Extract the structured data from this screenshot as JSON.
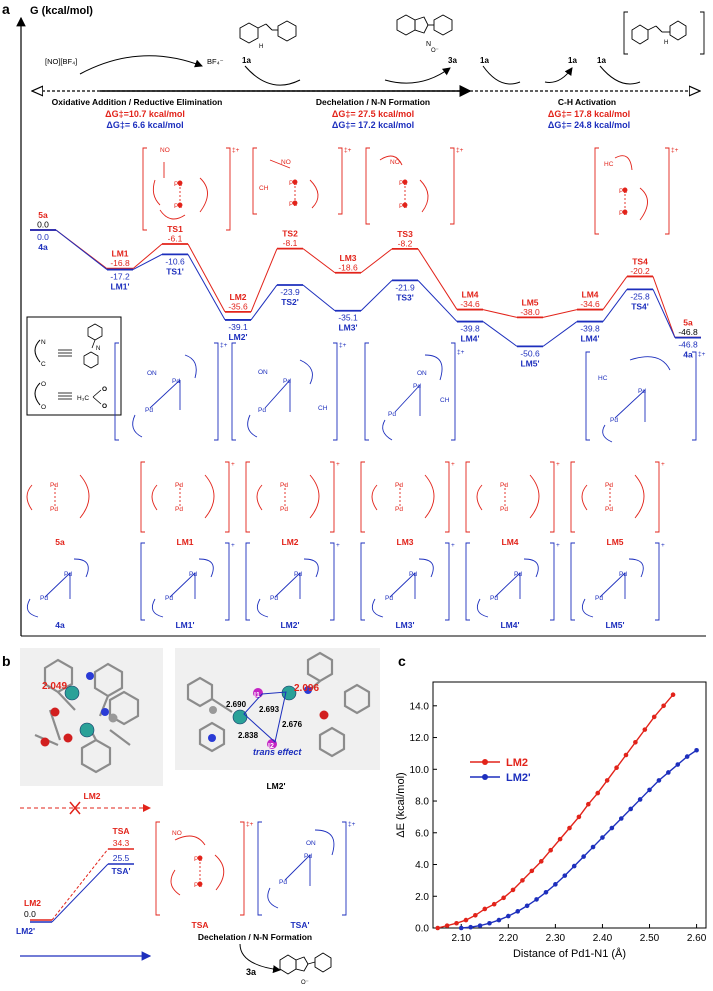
{
  "panel_a": {
    "label": "a",
    "y_axis_label": "G (kcal/mol)",
    "reagents": {
      "no_bf4": "[NO][BF₄]",
      "bf4": "BF₄⁻",
      "r1a_1": "1a",
      "r3a": "3a",
      "r1a_2": "1a",
      "r1a_3": "1a",
      "r1a_4": "1a"
    },
    "stages": [
      {
        "name": "Oxidative Addition / Reductive Elimination",
        "dg_red": "ΔG‡=10.7 kcal/mol",
        "dg_blue": "ΔG‡= 6.6 kcal/mol"
      },
      {
        "name": "Dechelation / N-N Formation",
        "dg_red": "ΔG‡= 27.5 kcal/mol",
        "dg_blue": "ΔG‡= 17.2 kcal/mol"
      },
      {
        "name": "C-H Activation",
        "dg_red": "ΔG‡= 17.8 kcal/mol",
        "dg_blue": "ΔG‡= 24.8 kcal/mol"
      }
    ],
    "red_states": [
      {
        "label": "5a",
        "value": "0.0"
      },
      {
        "label": "LM1",
        "value": "-16.8"
      },
      {
        "label": "TS1",
        "value": "-6.1"
      },
      {
        "label": "LM2",
        "value": "-35.6"
      },
      {
        "label": "TS2",
        "value": "-8.1"
      },
      {
        "label": "LM3",
        "value": "-18.6"
      },
      {
        "label": "TS3",
        "value": "-8.2"
      },
      {
        "label": "LM4",
        "value": "-34.6"
      },
      {
        "label": "LM5",
        "value": "-38.0"
      },
      {
        "label": "LM4",
        "value": "-34.6"
      },
      {
        "label": "TS4",
        "value": "-20.2"
      },
      {
        "label": "5a",
        "value": "-46.8"
      }
    ],
    "blue_states": [
      {
        "label": "4a",
        "value": "0.0"
      },
      {
        "label": "LM1'",
        "value": "-17.2"
      },
      {
        "label": "TS1'",
        "value": "-10.6"
      },
      {
        "label": "LM2'",
        "value": "-39.1"
      },
      {
        "label": "TS2'",
        "value": "-23.9"
      },
      {
        "label": "LM3'",
        "value": "-35.1"
      },
      {
        "label": "TS3'",
        "value": "-21.9"
      },
      {
        "label": "LM4'",
        "value": "-39.8"
      },
      {
        "label": "LM5'",
        "value": "-50.6"
      },
      {
        "label": "LM4'",
        "value": "-39.8"
      },
      {
        "label": "TS4'",
        "value": "-25.8"
      },
      {
        "label": "4a",
        "value": "-46.8"
      }
    ],
    "legend": {
      "ligand_cn": "C ≡ N",
      "acetate": "O ≡ H₃C"
    },
    "red_struct_labels": [
      "5a",
      "LM1",
      "LM2",
      "LM3",
      "LM4",
      "LM5"
    ],
    "blue_struct_labels": [
      "4a",
      "LM1'",
      "LM2'",
      "LM3'",
      "LM4'",
      "LM5'"
    ],
    "ts_labels_red": [
      "TS1",
      "TS2",
      "TS3",
      "TS4"
    ],
    "ts_labels_blue": [
      "TS1'",
      "TS2'",
      "TS3'",
      "TS4'"
    ]
  },
  "panel_b": {
    "label": "b",
    "lm2_caption": "LM2",
    "lm2p_caption": "LM2'",
    "d_2049": "2.049",
    "d_2096": "2.096",
    "d_2690": "2.690",
    "d_2693": "2.693",
    "d_2676": "2.676",
    "d_2838": "2.838",
    "atom_i1": "I1",
    "atom_i2": "I2",
    "trans_effect": "trans effect",
    "tsa_label": "TSA",
    "tsa_value": "34.3",
    "tsap_label": "TSA'",
    "tsap_value": "25.5",
    "lm2_level": "LM2",
    "lm2_level_value": "0.0",
    "lm2p_level": "LM2'",
    "struct_tsa": "TSA",
    "struct_tsap": "TSA'",
    "step_name": "Dechelation / N-N Formation",
    "product": "3a"
  },
  "panel_c": {
    "label": "c"
  },
  "chart_data": {
    "type": "line",
    "title": "",
    "xlabel": "Distance of Pd1-N1 (Å)",
    "ylabel": "ΔE (kcal/mol)",
    "xlim": [
      2.04,
      2.62
    ],
    "ylim": [
      0,
      15.5
    ],
    "xticks": [
      "2.10",
      "2.20",
      "2.30",
      "2.40",
      "2.50",
      "2.60"
    ],
    "yticks": [
      "0.0",
      "2.0",
      "4.0",
      "6.0",
      "8.0",
      "10.0",
      "12.0",
      "14.0"
    ],
    "legend_position": "upper-left",
    "series": [
      {
        "name": "LM2",
        "color": "#e2231a",
        "x": [
          2.05,
          2.07,
          2.09,
          2.11,
          2.13,
          2.15,
          2.17,
          2.19,
          2.21,
          2.23,
          2.25,
          2.27,
          2.29,
          2.31,
          2.33,
          2.35,
          2.37,
          2.39,
          2.41,
          2.43,
          2.45,
          2.47,
          2.49,
          2.51,
          2.53,
          2.55
        ],
        "y": [
          0.0,
          0.15,
          0.3,
          0.5,
          0.8,
          1.2,
          1.5,
          1.9,
          2.4,
          3.0,
          3.6,
          4.2,
          4.9,
          5.6,
          6.3,
          7.0,
          7.8,
          8.5,
          9.3,
          10.1,
          10.9,
          11.7,
          12.5,
          13.3,
          14.0,
          14.7
        ]
      },
      {
        "name": "LM2'",
        "color": "#1d2fbd",
        "x": [
          2.1,
          2.12,
          2.14,
          2.16,
          2.18,
          2.2,
          2.22,
          2.24,
          2.26,
          2.28,
          2.3,
          2.32,
          2.34,
          2.36,
          2.38,
          2.4,
          2.42,
          2.44,
          2.46,
          2.48,
          2.5,
          2.52,
          2.54,
          2.56,
          2.58,
          2.6
        ],
        "y": [
          0.0,
          0.05,
          0.15,
          0.3,
          0.5,
          0.75,
          1.05,
          1.4,
          1.8,
          2.25,
          2.75,
          3.3,
          3.9,
          4.5,
          5.1,
          5.7,
          6.3,
          6.9,
          7.5,
          8.1,
          8.7,
          9.3,
          9.8,
          10.3,
          10.8,
          11.2
        ]
      }
    ]
  }
}
